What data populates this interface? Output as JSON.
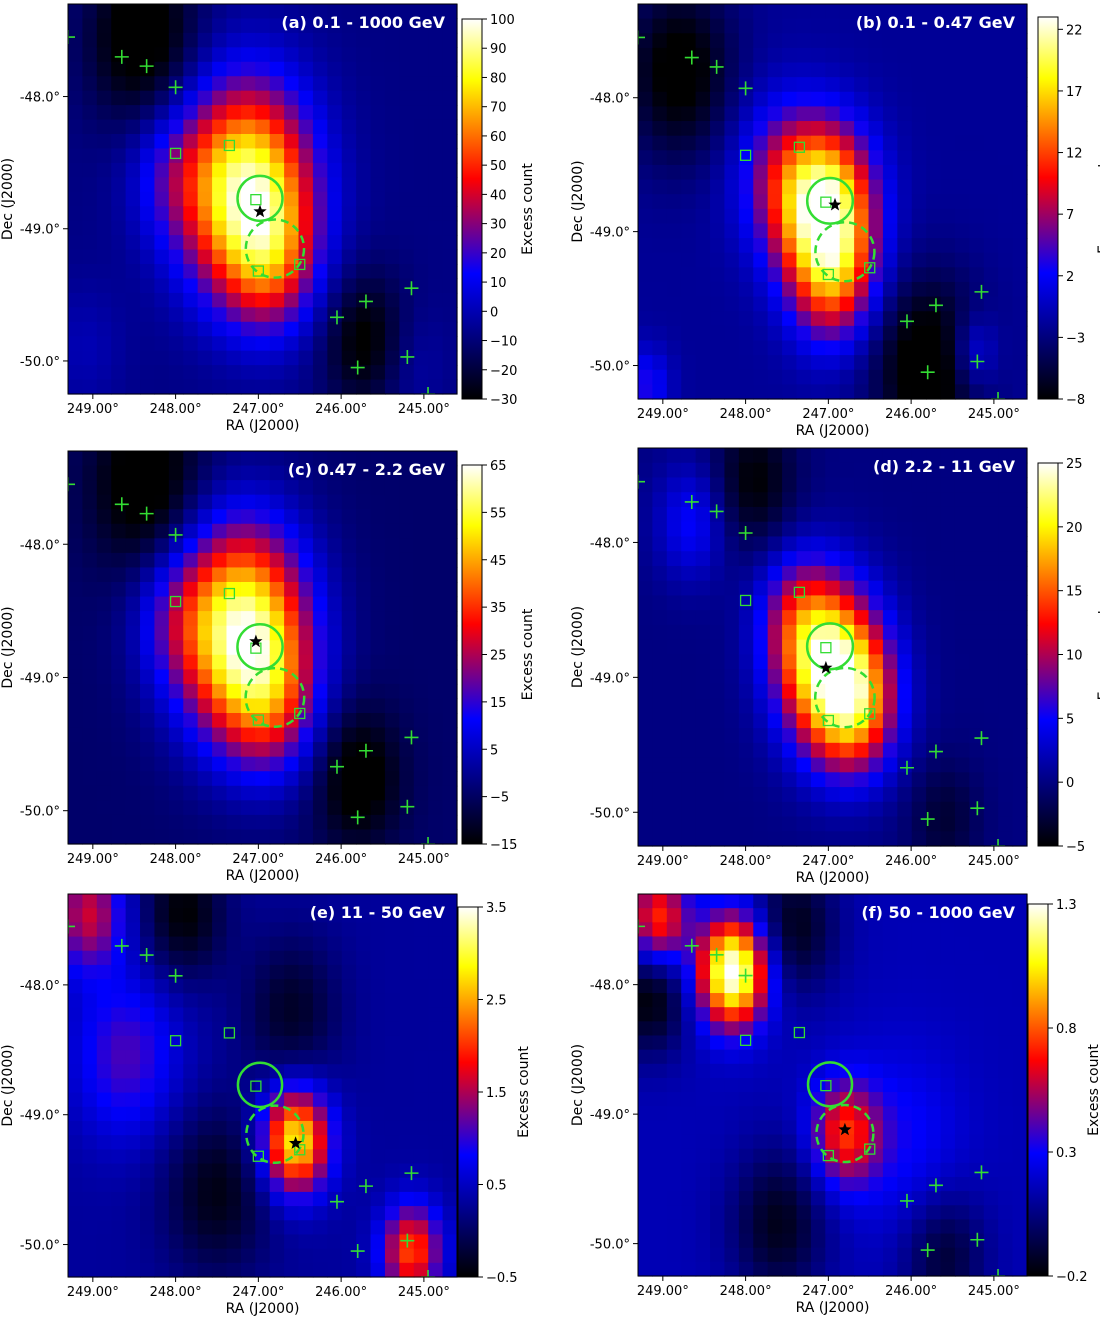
{
  "chart_data": [
    {
      "type": "heatmap",
      "title": "(a) 0.1 - 1000 GeV",
      "xlabel": "RA (J2000)",
      "ylabel": "Dec (J2000)",
      "colorbar_label": "Excess count",
      "xlim": [
        249.3,
        244.6
      ],
      "ylim": [
        -50.25,
        -47.3
      ],
      "xticks": [
        249.0,
        248.0,
        247.0,
        246.0,
        245.0
      ],
      "xtick_labels": [
        "249.00°",
        "248.00°",
        "247.00°",
        "246.00°",
        "245.00°"
      ],
      "yticks": [
        -48.0,
        -49.0,
        -50.0
      ],
      "ytick_labels": [
        "-48.0°",
        "-49.0°",
        "-50.0°"
      ],
      "cbar_range": [
        -30,
        100
      ],
      "cbar_ticks": [
        -30,
        -20,
        -10,
        0,
        10,
        20,
        30,
        40,
        50,
        60,
        70,
        80,
        90,
        100
      ],
      "cbar_tick_labels": [
        "−30",
        "−20",
        "−10",
        "0",
        "10",
        "20",
        "30",
        "40",
        "50",
        "60",
        "70",
        "80",
        "90",
        "100"
      ],
      "background": -8,
      "blobs": [
        {
          "ra": 247.15,
          "dec": -48.7,
          "sigma": 0.55,
          "amp": 100
        },
        {
          "ra": 246.85,
          "dec": -49.25,
          "sigma": 0.38,
          "amp": 35
        },
        {
          "ra": 248.1,
          "dec": -48.6,
          "sigma": 0.35,
          "amp": 15
        },
        {
          "ra": 248.4,
          "dec": -47.55,
          "sigma": 0.45,
          "amp": -30
        },
        {
          "ra": 245.7,
          "dec": -49.85,
          "sigma": 0.35,
          "amp": -25
        },
        {
          "ra": 249.1,
          "dec": -49.9,
          "sigma": 0.35,
          "amp": 8
        },
        {
          "ra": 245.2,
          "dec": -50.0,
          "sigma": 0.3,
          "amp": 8
        }
      ],
      "star": {
        "ra": 246.98,
        "dec": -48.87
      }
    },
    {
      "type": "heatmap",
      "title": "(b) 0.1 - 0.47 GeV",
      "xlabel": "RA (J2000)",
      "ylabel": "Dec (J2000)",
      "colorbar_label": "Excess count",
      "xlim": [
        249.3,
        244.6
      ],
      "ylim": [
        -50.25,
        -47.3
      ],
      "xticks": [
        249.0,
        248.0,
        247.0,
        246.0,
        245.0
      ],
      "xtick_labels": [
        "249.00°",
        "248.00°",
        "247.00°",
        "246.00°",
        "245.00°"
      ],
      "yticks": [
        -48.0,
        -49.0,
        -50.0
      ],
      "ytick_labels": [
        "-48.0°",
        "-49.0°",
        "-50.0°"
      ],
      "cbar_range": [
        -8,
        23
      ],
      "cbar_ticks": [
        -8,
        -3,
        2,
        7,
        12,
        17,
        22
      ],
      "cbar_tick_labels": [
        "−8",
        "−3",
        "2",
        "7",
        "12",
        "17",
        "22"
      ],
      "background": -2,
      "blobs": [
        {
          "ra": 247.05,
          "dec": -48.8,
          "sigma": 0.4,
          "amp": 23
        },
        {
          "ra": 246.95,
          "dec": -49.35,
          "sigma": 0.35,
          "amp": 12
        },
        {
          "ra": 247.6,
          "dec": -48.55,
          "sigma": 0.4,
          "amp": 6
        },
        {
          "ra": 248.8,
          "dec": -47.8,
          "sigma": 0.45,
          "amp": -7
        },
        {
          "ra": 245.8,
          "dec": -50.0,
          "sigma": 0.45,
          "amp": -8
        },
        {
          "ra": 245.25,
          "dec": -49.9,
          "sigma": 0.2,
          "amp": 5
        },
        {
          "ra": 249.2,
          "dec": -50.15,
          "sigma": 0.2,
          "amp": 5
        }
      ],
      "star": {
        "ra": 246.92,
        "dec": -48.8
      }
    },
    {
      "type": "heatmap",
      "title": "(c) 0.47 - 2.2 GeV",
      "xlabel": "RA (J2000)",
      "ylabel": "Dec (J2000)",
      "colorbar_label": "Excess count",
      "xlim": [
        249.3,
        244.6
      ],
      "ylim": [
        -50.25,
        -47.3
      ],
      "xticks": [
        249.0,
        248.0,
        247.0,
        246.0,
        245.0
      ],
      "xtick_labels": [
        "249.00°",
        "248.00°",
        "247.00°",
        "246.00°",
        "245.00°"
      ],
      "yticks": [
        -48.0,
        -49.0,
        -50.0
      ],
      "ytick_labels": [
        "-48.0°",
        "-49.0°",
        "-50.0°"
      ],
      "cbar_range": [
        -15,
        65
      ],
      "cbar_ticks": [
        -15,
        -5,
        5,
        15,
        25,
        35,
        45,
        55,
        65
      ],
      "cbar_tick_labels": [
        "−15",
        "−5",
        "5",
        "15",
        "25",
        "35",
        "45",
        "55",
        "65"
      ],
      "background": -4,
      "blobs": [
        {
          "ra": 247.2,
          "dec": -48.65,
          "sigma": 0.55,
          "amp": 65
        },
        {
          "ra": 246.85,
          "dec": -49.2,
          "sigma": 0.4,
          "amp": 20
        },
        {
          "ra": 248.05,
          "dec": -48.55,
          "sigma": 0.35,
          "amp": 10
        },
        {
          "ra": 248.35,
          "dec": -47.55,
          "sigma": 0.45,
          "amp": -16
        },
        {
          "ra": 245.8,
          "dec": -49.75,
          "sigma": 0.35,
          "amp": -15
        }
      ],
      "star": {
        "ra": 247.03,
        "dec": -48.73
      }
    },
    {
      "type": "heatmap",
      "title": "(d) 2.2 - 11 GeV",
      "xlabel": "RA (J2000)",
      "ylabel": "Dec (J2000)",
      "colorbar_label": "Excess count",
      "xlim": [
        249.3,
        244.6
      ],
      "ylim": [
        -50.25,
        -47.3
      ],
      "xticks": [
        249.0,
        248.0,
        247.0,
        246.0,
        245.0
      ],
      "xtick_labels": [
        "249.00°",
        "248.00°",
        "247.00°",
        "246.00°",
        "245.00°"
      ],
      "yticks": [
        -48.0,
        -49.0,
        -50.0
      ],
      "ytick_labels": [
        "-48.0°",
        "-49.0°",
        "-50.0°"
      ],
      "cbar_range": [
        -5,
        25
      ],
      "cbar_ticks": [
        -5,
        0,
        5,
        10,
        15,
        20,
        25
      ],
      "cbar_tick_labels": [
        "−5",
        "0",
        "5",
        "10",
        "15",
        "20",
        "25"
      ],
      "background": 0,
      "blobs": [
        {
          "ra": 246.95,
          "dec": -48.95,
          "sigma": 0.42,
          "amp": 22
        },
        {
          "ra": 246.65,
          "dec": -49.25,
          "sigma": 0.35,
          "amp": 10
        },
        {
          "ra": 247.35,
          "dec": -48.55,
          "sigma": 0.35,
          "amp": 8
        },
        {
          "ra": 248.65,
          "dec": -47.85,
          "sigma": 0.3,
          "amp": 5
        },
        {
          "ra": 247.9,
          "dec": -47.55,
          "sigma": 0.35,
          "amp": -5
        },
        {
          "ra": 245.6,
          "dec": -50.05,
          "sigma": 0.3,
          "amp": -3
        }
      ],
      "star": {
        "ra": 247.03,
        "dec": -48.93
      }
    },
    {
      "type": "heatmap",
      "title": "(e) 11 - 50 GeV",
      "xlabel": "RA (J2000)",
      "ylabel": "Dec (J2000)",
      "colorbar_label": "Excess count",
      "xlim": [
        249.3,
        244.6
      ],
      "ylim": [
        -50.25,
        -47.3
      ],
      "xticks": [
        249.0,
        248.0,
        247.0,
        246.0,
        245.0
      ],
      "xtick_labels": [
        "249.00°",
        "248.00°",
        "247.00°",
        "246.00°",
        "245.00°"
      ],
      "yticks": [
        -48.0,
        -49.0,
        -50.0
      ],
      "ytick_labels": [
        "-48.0°",
        "-49.0°",
        "-50.0°"
      ],
      "cbar_range": [
        -0.5,
        3.5
      ],
      "cbar_ticks": [
        -0.5,
        0.5,
        1.5,
        2.5,
        3.5
      ],
      "cbar_tick_labels": [
        "−0.5",
        "0.5",
        "1.5",
        "2.5",
        "3.5"
      ],
      "background": 0.3,
      "blobs": [
        {
          "ra": 246.55,
          "dec": -49.2,
          "sigma": 0.28,
          "amp": 2.6
        },
        {
          "ra": 245.15,
          "dec": -50.05,
          "sigma": 0.25,
          "amp": 1.8
        },
        {
          "ra": 249.05,
          "dec": -47.45,
          "sigma": 0.3,
          "amp": 1.3
        },
        {
          "ra": 248.6,
          "dec": -48.55,
          "sigma": 0.45,
          "amp": 0.8
        },
        {
          "ra": 247.9,
          "dec": -47.45,
          "sigma": 0.35,
          "amp": -0.8
        },
        {
          "ra": 246.6,
          "dec": -48.2,
          "sigma": 0.4,
          "amp": -0.6
        },
        {
          "ra": 247.5,
          "dec": -49.6,
          "sigma": 0.45,
          "amp": -0.7
        }
      ],
      "star": {
        "ra": 246.55,
        "dec": -49.22
      }
    },
    {
      "type": "heatmap",
      "title": "(f) 50 - 1000 GeV",
      "xlabel": "RA (J2000)",
      "ylabel": "Dec (J2000)",
      "colorbar_label": "Excess count",
      "xlim": [
        249.3,
        244.6
      ],
      "ylim": [
        -50.25,
        -47.3
      ],
      "xticks": [
        249.0,
        248.0,
        247.0,
        246.0,
        245.0
      ],
      "xtick_labels": [
        "249.00°",
        "248.00°",
        "247.00°",
        "246.00°",
        "245.00°"
      ],
      "yticks": [
        -48.0,
        -49.0,
        -50.0
      ],
      "ytick_labels": [
        "-48.0°",
        "-49.0°",
        "-50.0°"
      ],
      "cbar_range": [
        -0.2,
        1.3
      ],
      "cbar_ticks": [
        -0.2,
        0.3,
        0.8,
        1.3
      ],
      "cbar_tick_labels": [
        "−0.2",
        "0.3",
        "0.8",
        "1.3"
      ],
      "background": 0.15,
      "blobs": [
        {
          "ra": 248.15,
          "dec": -47.9,
          "sigma": 0.28,
          "amp": 1.2
        },
        {
          "ra": 246.8,
          "dec": -49.15,
          "sigma": 0.28,
          "amp": 0.55
        },
        {
          "ra": 249.05,
          "dec": -47.5,
          "sigma": 0.25,
          "amp": 0.6
        },
        {
          "ra": 246.1,
          "dec": -49.2,
          "sigma": 0.5,
          "amp": 0.15
        },
        {
          "ra": 249.15,
          "dec": -48.1,
          "sigma": 0.3,
          "amp": -0.35
        },
        {
          "ra": 247.4,
          "dec": -47.55,
          "sigma": 0.35,
          "amp": -0.3
        },
        {
          "ra": 247.6,
          "dec": -49.85,
          "sigma": 0.4,
          "amp": -0.3
        },
        {
          "ra": 245.6,
          "dec": -50.1,
          "sigma": 0.35,
          "amp": -0.25
        }
      ],
      "star": {
        "ra": 246.8,
        "dec": -49.12
      }
    }
  ],
  "overlays": {
    "color": "#33dd33",
    "solid_circle": {
      "ra": 246.98,
      "dec": -48.77,
      "radius_deg": 0.17
    },
    "dashed_circle": {
      "ra": 246.8,
      "dec": -49.15,
      "radius_deg": 0.22
    },
    "squares": [
      {
        "ra": 248.0,
        "dec": -48.43
      },
      {
        "ra": 247.35,
        "dec": -48.37
      },
      {
        "ra": 247.03,
        "dec": -48.78
      },
      {
        "ra": 247.0,
        "dec": -49.32
      },
      {
        "ra": 246.5,
        "dec": -49.27
      }
    ],
    "crosses": [
      {
        "ra": 249.3,
        "dec": -47.55
      },
      {
        "ra": 248.65,
        "dec": -47.7
      },
      {
        "ra": 248.35,
        "dec": -47.77
      },
      {
        "ra": 248.0,
        "dec": -47.93
      },
      {
        "ra": 246.05,
        "dec": -49.67
      },
      {
        "ra": 245.7,
        "dec": -49.55
      },
      {
        "ra": 245.15,
        "dec": -49.45
      },
      {
        "ra": 245.8,
        "dec": -50.05
      },
      {
        "ra": 245.2,
        "dec": -49.97
      },
      {
        "ra": 244.95,
        "dec": -50.25
      }
    ]
  }
}
